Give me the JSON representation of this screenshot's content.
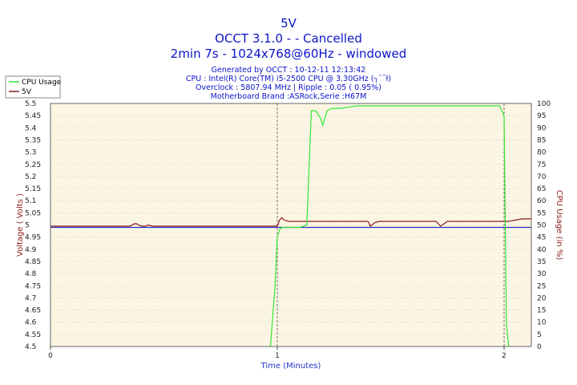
{
  "header": {
    "line1": "5V",
    "line2": "OCCT 3.1.0 -  - Cancelled",
    "line3": "2min 7s - 1024x768@60Hz - windowed"
  },
  "info": {
    "line1": "Generated by OCCT : 10-12-11 12:13:42",
    "line2": "CPU : Intel(R) Core(TM) i5-2500 CPU @ 3.30GHz (┐¨¯ł)",
    "line3": "Overclock : 5807.94 MHz | Ripple : 0.05 ( 0.95%)",
    "line4": "Motherboard Brand :ASRock,Serie :H67M"
  },
  "colors": {
    "plot_bg": "#fbf5e3",
    "cpu_line": "#33e633",
    "v5_line": "#8b1a1a",
    "ref_line": "#2233cc",
    "title_text": "#0b14c8",
    "axis_title_red": "#8b1a1a"
  },
  "chart_data": {
    "type": "line",
    "title": "5V",
    "xlabel": "Time (Minutes)",
    "ylabel": "Voltage ( Volts )",
    "y2label": "CPU Usage (in %)",
    "xlim": [
      0,
      2.12
    ],
    "ylim": [
      4.5,
      5.5
    ],
    "y2lim": [
      0,
      100
    ],
    "x_ticks": [
      0,
      1,
      2
    ],
    "y_ticks": [
      "4.5",
      "4.55",
      "4.6",
      "4.65",
      "4.7",
      "4.75",
      "4.8",
      "4.85",
      "4.9",
      "4.95",
      "5",
      "5.05",
      "5.1",
      "5.15",
      "5.2",
      "5.25",
      "5.3",
      "5.35",
      "5.4",
      "5.45",
      "5.5"
    ],
    "y2_ticks": [
      "0",
      "5",
      "10",
      "15",
      "20",
      "25",
      "30",
      "35",
      "40",
      "45",
      "50",
      "55",
      "60",
      "65",
      "70",
      "75",
      "80",
      "85",
      "90",
      "95",
      "100"
    ],
    "vertical_markers": [
      1,
      2
    ],
    "reference_line": 4.99,
    "grid": true,
    "legend_position": "top-left",
    "series": [
      {
        "name": "CPU Usage",
        "axis": "right",
        "x": [
          0.97,
          0.99,
          1.0,
          1.01,
          1.02,
          1.06,
          1.1,
          1.13,
          1.15,
          1.17,
          1.19,
          1.2,
          1.22,
          1.24,
          1.28,
          1.35,
          1.4,
          1.5,
          1.6,
          1.7,
          1.8,
          1.9,
          1.95,
          1.98,
          2.0,
          2.01,
          2.02
        ],
        "y": [
          0,
          25,
          45,
          48,
          49,
          49,
          49,
          50,
          97,
          97,
          94,
          91,
          97,
          98,
          98,
          99,
          99,
          99,
          99,
          99,
          99,
          99,
          99,
          99,
          95,
          10,
          0
        ]
      },
      {
        "name": "5V",
        "axis": "left",
        "x": [
          0,
          0.35,
          0.37,
          0.38,
          0.4,
          0.42,
          0.43,
          0.45,
          0.48,
          0.8,
          1.0,
          1.01,
          1.02,
          1.03,
          1.05,
          1.1,
          1.4,
          1.41,
          1.43,
          1.45,
          1.5,
          1.7,
          1.72,
          1.75,
          1.8,
          2.0,
          2.02,
          2.05,
          2.08,
          2.12
        ],
        "y": [
          4.995,
          4.995,
          5.005,
          5.005,
          4.995,
          4.995,
          5.0,
          4.995,
          4.995,
          4.995,
          4.995,
          5.02,
          5.03,
          5.02,
          5.015,
          5.015,
          5.015,
          4.995,
          5.01,
          5.015,
          5.015,
          5.015,
          4.995,
          5.015,
          5.015,
          5.015,
          5.015,
          5.02,
          5.025,
          5.025
        ]
      }
    ]
  }
}
